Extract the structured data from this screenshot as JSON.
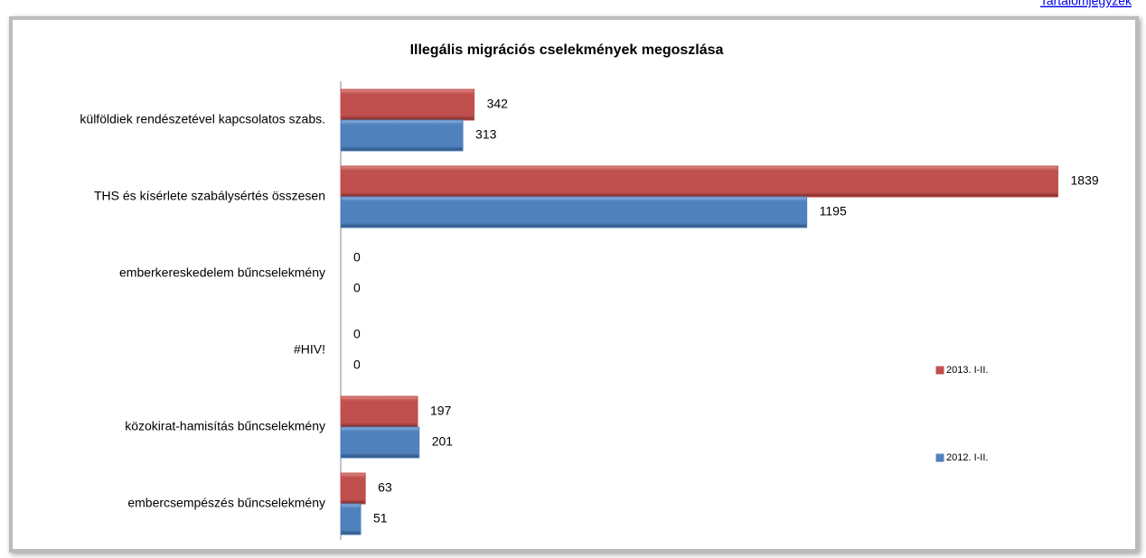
{
  "link": "Tartalomjegyzék",
  "chart_data": {
    "type": "bar",
    "orientation": "horizontal",
    "title": "Illegális migrációs cselekmények megoszlása",
    "categories": [
      "külföldiek rendészetével kapcsolatos szabs.",
      "THS és kísérlete szabálysértés összesen",
      "emberkereskedelem bűncselekmény",
      "#HIV!",
      "közokirat-hamisítás bűncselekmény",
      "embercsempészés bűncselekmény"
    ],
    "series": [
      {
        "name": "2013. I-II.",
        "color": "#c0504d",
        "values": [
          342,
          1839,
          0,
          0,
          197,
          63
        ]
      },
      {
        "name": "2012. I-II.",
        "color": "#4f81bd",
        "values": [
          313,
          1195,
          0,
          0,
          201,
          51
        ]
      }
    ],
    "xlim": [
      0,
      2000
    ],
    "legend": "right"
  }
}
